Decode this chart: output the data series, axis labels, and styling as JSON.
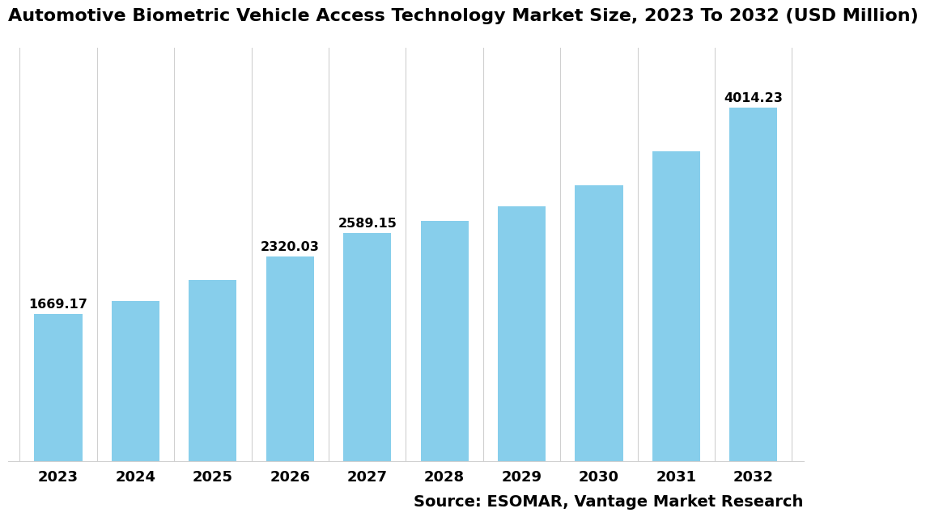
{
  "title": "Automotive Biometric Vehicle Access Technology Market Size, 2023 To 2032 (USD Million)",
  "categories": [
    "2023",
    "2024",
    "2025",
    "2026",
    "2027",
    "2028",
    "2029",
    "2030",
    "2031",
    "2032"
  ],
  "values": [
    1669.17,
    1820.5,
    2060.0,
    2320.03,
    2589.15,
    2730.0,
    2890.0,
    3130.0,
    3520.0,
    4014.23
  ],
  "bar_color": "#87CEEB",
  "label_fontsize": 11.5,
  "title_fontsize": 16,
  "tick_fontsize": 13,
  "source_text": "Source: ESOMAR, Vantage Market Research",
  "source_fontsize": 14,
  "ylim": [
    0,
    4700
  ],
  "show_labels": [
    true,
    false,
    false,
    true,
    true,
    false,
    false,
    false,
    false,
    true
  ],
  "background_color": "#ffffff",
  "grid_color": "#d0d0d0"
}
